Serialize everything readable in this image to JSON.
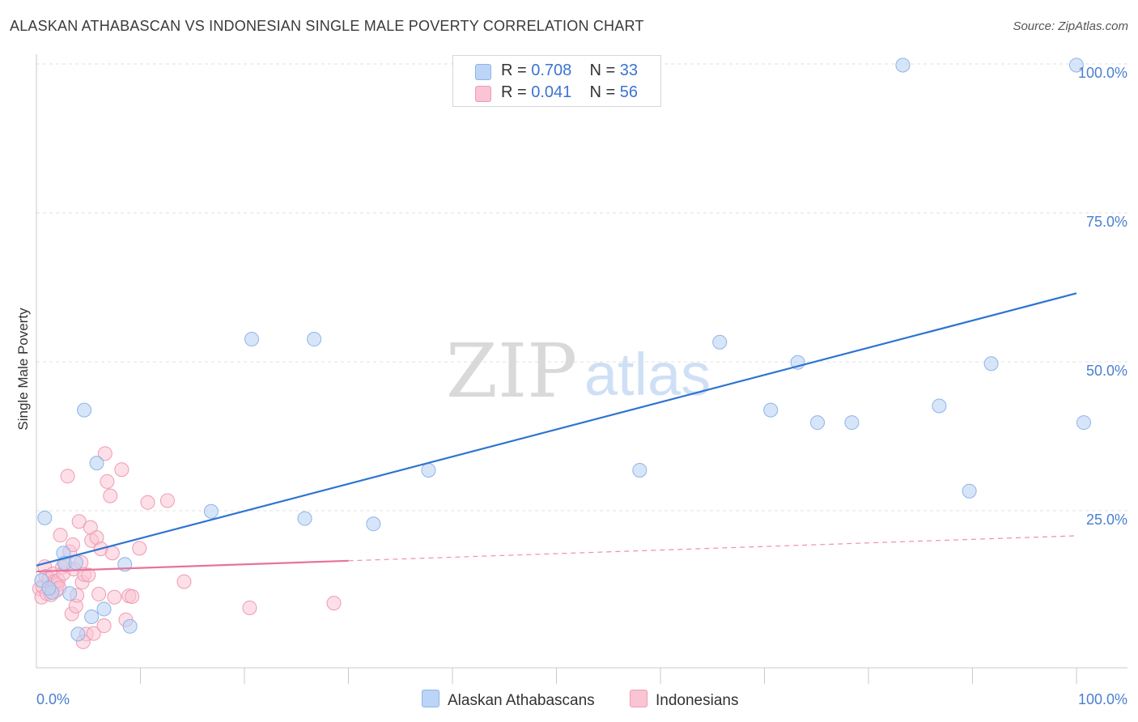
{
  "title": "ALASKAN ATHABASCAN VS INDONESIAN SINGLE MALE POVERTY CORRELATION CHART",
  "source": "Source: ZipAtlas.com",
  "watermark": {
    "zip": "ZIP",
    "atlas": "atlas"
  },
  "colors": {
    "blue_fill": "#bcd4f5",
    "blue_stroke": "#8fb3e8",
    "blue_line": "#2f74d0",
    "pink_fill": "#f9c4d3",
    "pink_stroke": "#f09ab3",
    "pink_line": "#e8739a",
    "tick_text": "#4a7fd0",
    "grid": "#e2e2e2"
  },
  "legend": {
    "rows": [
      {
        "r_label": "R =",
        "r_value": "0.708",
        "n_label": "N =",
        "n_value": "33"
      },
      {
        "r_label": "R =",
        "r_value": "0.041",
        "n_label": "N =",
        "n_value": "56"
      }
    ]
  },
  "bottom_legend": {
    "series1": "Alaskan Athabascans",
    "series2": "Indonesians"
  },
  "chart_data": {
    "type": "scatter",
    "title": "ALASKAN ATHABASCAN VS INDONESIAN SINGLE MALE POVERTY CORRELATION CHART",
    "xlabel": "",
    "ylabel": "Single Male Poverty",
    "xlim": [
      0,
      100
    ],
    "ylim": [
      0,
      100
    ],
    "x_tick_labels": [
      "0.0%",
      "100.0%"
    ],
    "y_ticks": [
      25,
      50,
      75,
      100
    ],
    "y_tick_labels": [
      "25.0%",
      "50.0%",
      "75.0%",
      "100.0%"
    ],
    "series": [
      {
        "name": "Alaskan Athabascans",
        "r": 0.708,
        "n": 33,
        "trend": {
          "x": [
            0,
            100
          ],
          "y": [
            15.8,
            61.5
          ],
          "dashed_from": null
        },
        "points": [
          [
            0.8,
            23.8
          ],
          [
            0.5,
            13.3
          ],
          [
            1.5,
            11.3
          ],
          [
            2.6,
            17.9
          ],
          [
            2.7,
            16.2
          ],
          [
            3.8,
            16.3
          ],
          [
            4.6,
            41.9
          ],
          [
            5.8,
            33.0
          ],
          [
            3.2,
            11.1
          ],
          [
            4.0,
            4.3
          ],
          [
            5.3,
            7.2
          ],
          [
            6.5,
            8.5
          ],
          [
            8.5,
            16.0
          ],
          [
            9.0,
            5.6
          ],
          [
            16.8,
            24.9
          ],
          [
            20.7,
            53.8
          ],
          [
            25.8,
            23.7
          ],
          [
            26.7,
            53.8
          ],
          [
            32.4,
            22.8
          ],
          [
            37.7,
            31.8
          ],
          [
            58.0,
            31.8
          ],
          [
            65.7,
            53.3
          ],
          [
            70.6,
            41.9
          ],
          [
            73.2,
            49.9
          ],
          [
            75.1,
            39.8
          ],
          [
            78.4,
            39.8
          ],
          [
            83.3,
            99.8
          ],
          [
            86.8,
            42.6
          ],
          [
            89.7,
            28.3
          ],
          [
            91.8,
            49.7
          ],
          [
            100.0,
            99.8
          ],
          [
            100.7,
            39.8
          ],
          [
            1.2,
            12.0
          ]
        ]
      },
      {
        "name": "Indonesians",
        "r": 0.041,
        "n": 56,
        "trend": {
          "x": [
            0,
            100
          ],
          "y": [
            14.8,
            20.8
          ],
          "dashed_from": 30
        },
        "points": [
          [
            0.3,
            11.9
          ],
          [
            0.5,
            10.5
          ],
          [
            0.6,
            12.3
          ],
          [
            0.8,
            15.6
          ],
          [
            0.9,
            14.0
          ],
          [
            1.0,
            11.1
          ],
          [
            1.2,
            13.6
          ],
          [
            1.4,
            10.9
          ],
          [
            1.5,
            12.2
          ],
          [
            1.6,
            14.4
          ],
          [
            1.7,
            13.1
          ],
          [
            1.8,
            12.8
          ],
          [
            1.9,
            11.6
          ],
          [
            2.0,
            12.6
          ],
          [
            2.1,
            13.3
          ],
          [
            2.3,
            20.9
          ],
          [
            2.5,
            15.5
          ],
          [
            2.6,
            14.5
          ],
          [
            2.8,
            15.9
          ],
          [
            3.0,
            30.8
          ],
          [
            3.2,
            18.1
          ],
          [
            3.4,
            7.7
          ],
          [
            3.5,
            19.3
          ],
          [
            3.6,
            15.2
          ],
          [
            3.8,
            9.0
          ],
          [
            3.9,
            10.8
          ],
          [
            4.1,
            23.2
          ],
          [
            4.3,
            16.3
          ],
          [
            4.4,
            13.0
          ],
          [
            4.6,
            14.3
          ],
          [
            4.8,
            4.3
          ],
          [
            5.0,
            14.2
          ],
          [
            5.2,
            22.2
          ],
          [
            5.3,
            20.0
          ],
          [
            5.5,
            4.4
          ],
          [
            5.8,
            20.5
          ],
          [
            6.0,
            11.0
          ],
          [
            6.2,
            18.6
          ],
          [
            6.5,
            5.7
          ],
          [
            6.6,
            34.6
          ],
          [
            6.8,
            29.9
          ],
          [
            7.1,
            27.5
          ],
          [
            7.3,
            17.9
          ],
          [
            7.5,
            10.5
          ],
          [
            8.2,
            31.9
          ],
          [
            8.6,
            6.7
          ],
          [
            8.9,
            10.7
          ],
          [
            9.2,
            10.6
          ],
          [
            9.9,
            18.7
          ],
          [
            10.7,
            26.4
          ],
          [
            12.6,
            26.7
          ],
          [
            14.2,
            13.1
          ],
          [
            20.5,
            8.7
          ],
          [
            28.6,
            9.5
          ],
          [
            4.5,
            3.0
          ],
          [
            2.2,
            12.0
          ]
        ]
      }
    ]
  },
  "axis": {
    "y_axis_title": "Single Male Poverty"
  }
}
